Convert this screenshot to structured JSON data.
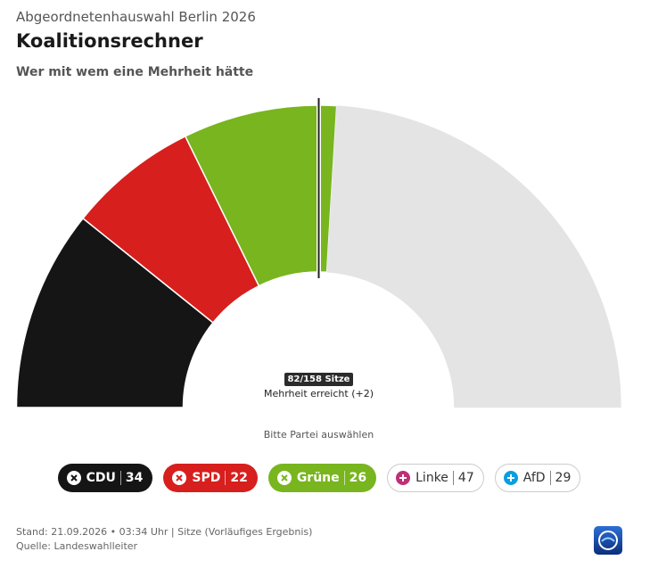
{
  "chart_data": {
    "type": "semidonut",
    "kicker": "Abgeordnetenhauswahl Berlin 2026",
    "title": "Koalitionsrechner",
    "subtitle": "Wer mit wem eine Mehrheit hätte",
    "categories": [
      "CDU",
      "SPD",
      "Grüne",
      "Linke",
      "AfD"
    ],
    "values": [
      34,
      22,
      26,
      47,
      29
    ],
    "colors": [
      "#151515",
      "#d71f1d",
      "#78b51f",
      "#be3075",
      "#0a9ee0"
    ],
    "selected": [
      true,
      true,
      true,
      false,
      false
    ],
    "unselected_color": "#e4e4e4",
    "seats_label": "82/158 Sitze",
    "majority_label": "Mehrheit erreicht (+2)",
    "prompt": "Bitte Partei auswählen"
  },
  "footer": {
    "stand": "Stand: 21.09.2026 • 03:34 Uhr | Sitze (Vorläufiges Ergebnis)",
    "source": "Quelle: Landeswahlleiter"
  }
}
